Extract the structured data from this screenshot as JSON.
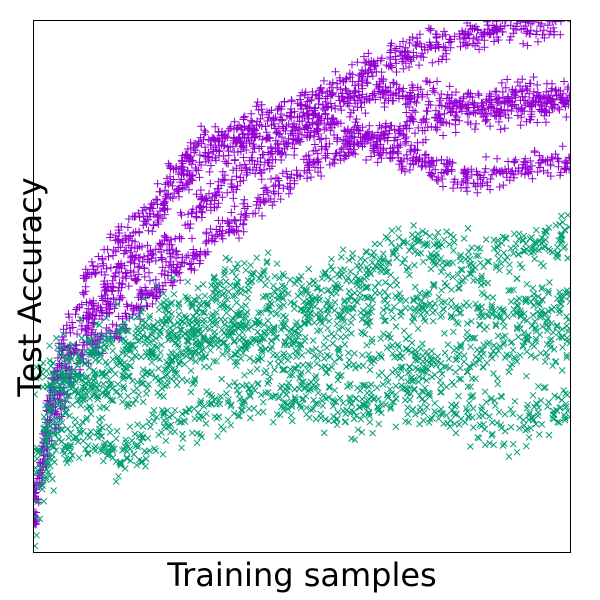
{
  "chart_data": {
    "type": "scatter",
    "title": "",
    "xlabel": "Training samples",
    "ylabel": "Test Accuracy",
    "xlim": [
      0,
      1
    ],
    "ylim": [
      0,
      1
    ],
    "x_ticks_visible": false,
    "y_ticks_visible": false,
    "grid": false,
    "legend": "none",
    "series": [
      {
        "marker": "plus",
        "color": "#9400D3",
        "points_per_trajectory": 640,
        "trajectories": [
          {
            "x": [
              0,
              0.03,
              0.06,
              0.1,
              0.15,
              0.2,
              0.25,
              0.3,
              0.35,
              0.4,
              0.45,
              0.5,
              0.55,
              0.6,
              0.65,
              0.7,
              0.75,
              0.8,
              0.85,
              0.9,
              0.95,
              1.0
            ],
            "y": [
              0.05,
              0.3,
              0.42,
              0.52,
              0.58,
              0.63,
              0.7,
              0.76,
              0.78,
              0.8,
              0.82,
              0.84,
              0.87,
              0.9,
              0.92,
              0.94,
              0.96,
              0.97,
              0.98,
              0.99,
              0.99,
              1.0
            ]
          },
          {
            "x": [
              0,
              0.03,
              0.06,
              0.1,
              0.15,
              0.2,
              0.25,
              0.3,
              0.35,
              0.4,
              0.45,
              0.5,
              0.55,
              0.6,
              0.65,
              0.7,
              0.75,
              0.8,
              0.85,
              0.9,
              0.95,
              1.0
            ],
            "y": [
              0.08,
              0.28,
              0.38,
              0.45,
              0.52,
              0.6,
              0.66,
              0.72,
              0.76,
              0.77,
              0.78,
              0.81,
              0.84,
              0.86,
              0.87,
              0.85,
              0.86,
              0.84,
              0.85,
              0.87,
              0.86,
              0.84
            ]
          },
          {
            "x": [
              0,
              0.03,
              0.06,
              0.1,
              0.15,
              0.2,
              0.25,
              0.3,
              0.35,
              0.4,
              0.45,
              0.5,
              0.55,
              0.6,
              0.65,
              0.7,
              0.75,
              0.8,
              0.85,
              0.9,
              0.95,
              1.0
            ],
            "y": [
              0.1,
              0.25,
              0.34,
              0.42,
              0.48,
              0.54,
              0.58,
              0.64,
              0.68,
              0.72,
              0.75,
              0.79,
              0.8,
              0.79,
              0.78,
              0.8,
              0.81,
              0.82,
              0.83,
              0.83,
              0.84,
              0.86
            ]
          },
          {
            "x": [
              0,
              0.03,
              0.06,
              0.1,
              0.15,
              0.2,
              0.25,
              0.3,
              0.35,
              0.4,
              0.45,
              0.5,
              0.55,
              0.6,
              0.65,
              0.7,
              0.75,
              0.8,
              0.85,
              0.9,
              0.95,
              1.0
            ],
            "y": [
              0.06,
              0.22,
              0.3,
              0.38,
              0.42,
              0.47,
              0.52,
              0.56,
              0.6,
              0.64,
              0.68,
              0.72,
              0.75,
              0.77,
              0.76,
              0.74,
              0.73,
              0.7,
              0.71,
              0.72,
              0.73,
              0.74
            ]
          }
        ]
      },
      {
        "marker": "x",
        "color": "#009E73",
        "points_per_trajectory": 640,
        "trajectories": [
          {
            "x": [
              0,
              0.03,
              0.06,
              0.1,
              0.15,
              0.2,
              0.25,
              0.3,
              0.35,
              0.4,
              0.45,
              0.5,
              0.55,
              0.6,
              0.65,
              0.7,
              0.75,
              0.8,
              0.85,
              0.9,
              0.95,
              1.0
            ],
            "y": [
              0.0,
              0.25,
              0.3,
              0.33,
              0.36,
              0.38,
              0.4,
              0.42,
              0.44,
              0.43,
              0.44,
              0.45,
              0.44,
              0.45,
              0.46,
              0.47,
              0.46,
              0.45,
              0.44,
              0.45,
              0.46,
              0.47
            ]
          },
          {
            "x": [
              0,
              0.03,
              0.06,
              0.1,
              0.15,
              0.2,
              0.25,
              0.3,
              0.35,
              0.4,
              0.45,
              0.5,
              0.55,
              0.6,
              0.65,
              0.7,
              0.75,
              0.8,
              0.85,
              0.9,
              0.95,
              1.0
            ],
            "y": [
              0.15,
              0.28,
              0.31,
              0.29,
              0.3,
              0.32,
              0.35,
              0.38,
              0.4,
              0.39,
              0.38,
              0.37,
              0.36,
              0.37,
              0.38,
              0.36,
              0.35,
              0.36,
              0.37,
              0.38,
              0.39,
              0.4
            ]
          },
          {
            "x": [
              0,
              0.03,
              0.06,
              0.1,
              0.15,
              0.2,
              0.25,
              0.3,
              0.35,
              0.4,
              0.45,
              0.5,
              0.55,
              0.6,
              0.65,
              0.7,
              0.75,
              0.8,
              0.85,
              0.9,
              0.95,
              1.0
            ],
            "y": [
              0.1,
              0.18,
              0.2,
              0.22,
              0.18,
              0.2,
              0.24,
              0.26,
              0.28,
              0.3,
              0.29,
              0.3,
              0.28,
              0.27,
              0.29,
              0.3,
              0.28,
              0.27,
              0.25,
              0.24,
              0.26,
              0.28
            ]
          },
          {
            "x": [
              0,
              0.03,
              0.06,
              0.1,
              0.15,
              0.2,
              0.25,
              0.3,
              0.35,
              0.4,
              0.45,
              0.5,
              0.55,
              0.6,
              0.65,
              0.7,
              0.75,
              0.8,
              0.85,
              0.9,
              0.95,
              1.0
            ],
            "y": [
              0.3,
              0.34,
              0.36,
              0.38,
              0.4,
              0.42,
              0.44,
              0.47,
              0.5,
              0.52,
              0.5,
              0.48,
              0.5,
              0.52,
              0.55,
              0.58,
              0.56,
              0.54,
              0.55,
              0.57,
              0.58,
              0.6
            ]
          }
        ]
      }
    ]
  }
}
